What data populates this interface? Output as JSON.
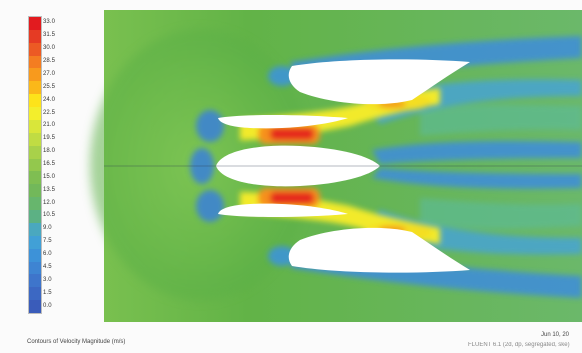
{
  "legend": {
    "labels": [
      "33.0",
      "31.5",
      "30.0",
      "28.5",
      "27.0",
      "25.5",
      "24.0",
      "22.5",
      "21.0",
      "19.5",
      "18.0",
      "16.5",
      "15.0",
      "13.5",
      "12.0",
      "10.5",
      "9.0",
      "7.5",
      "6.0",
      "4.5",
      "3.0",
      "1.5",
      "0.0"
    ],
    "colors": [
      "#e21b1f",
      "#e53b24",
      "#ec5a24",
      "#f47d21",
      "#f89a1d",
      "#fbb819",
      "#fde31a",
      "#f3ee2c",
      "#d9e63a",
      "#c0dc43",
      "#a8d14a",
      "#93c84d",
      "#7fbe52",
      "#72b85a",
      "#67b66d",
      "#5cb184",
      "#4aa8bf",
      "#41a0d6",
      "#3d92d8",
      "#3e84d2",
      "#3e75cb",
      "#3c68c3",
      "#3a5cba"
    ]
  },
  "caption": "Contours of Velocity Magnitude (m/s)",
  "date": "Jun 10, 20",
  "footnote": "FLUENT 6.1 (2d, dp, segregated, ske)",
  "colors": {
    "background": "#5fb24a",
    "blade": "#ffffff",
    "jet_peak": "#e5271f"
  }
}
